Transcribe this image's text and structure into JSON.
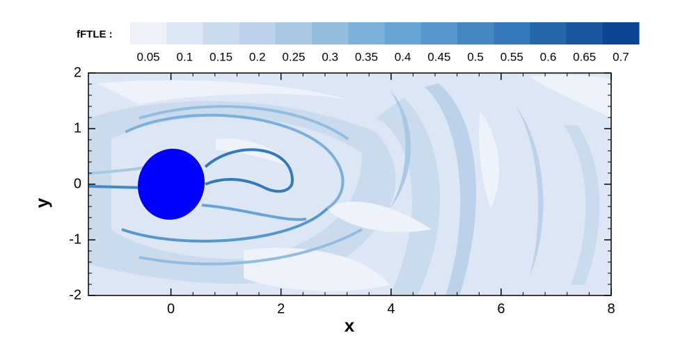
{
  "chart_data": {
    "type": "contour",
    "legend_title": "fFTLE :",
    "levels": [
      0.05,
      0.1,
      0.15,
      0.2,
      0.25,
      0.3,
      0.35,
      0.4,
      0.45,
      0.5,
      0.55,
      0.6,
      0.65,
      0.7
    ],
    "colors": [
      "#eef3fb",
      "#dce6f5",
      "#cbdbee",
      "#bbd2ea",
      "#a8c8e4",
      "#93bcdf",
      "#7cb0da",
      "#66a4d5",
      "#5596cc",
      "#4588c3",
      "#3479b9",
      "#2567ab",
      "#18579f",
      "#0c4593"
    ],
    "xlabel": "x",
    "ylabel": "y",
    "xlim": [
      -1.5,
      8
    ],
    "ylim": [
      -2,
      2
    ],
    "xticks": [
      0,
      2,
      4,
      6,
      8
    ],
    "yticks": [
      -2,
      -1,
      0,
      1,
      2
    ]
  }
}
